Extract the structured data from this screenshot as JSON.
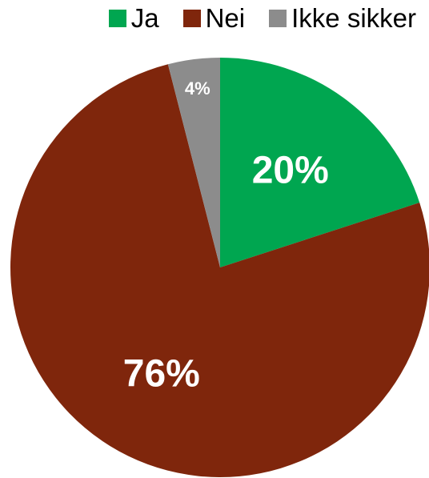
{
  "chart_data": {
    "type": "pie",
    "title": "",
    "categories": [
      "Ja",
      "Nei",
      "Ikke sikker"
    ],
    "values": [
      20,
      76,
      4
    ],
    "data_labels": [
      "20%",
      "76%",
      "4%"
    ],
    "colors": [
      "#00a650",
      "#7f260c",
      "#8c8c8c"
    ],
    "legend_position": "top-right",
    "start_angle": "12 o'clock, clockwise"
  },
  "legend": {
    "items": [
      {
        "label": "Ja",
        "color": "#00a650"
      },
      {
        "label": "Nei",
        "color": "#7f260c"
      },
      {
        "label": "Ikke sikker",
        "color": "#8c8c8c"
      }
    ]
  }
}
